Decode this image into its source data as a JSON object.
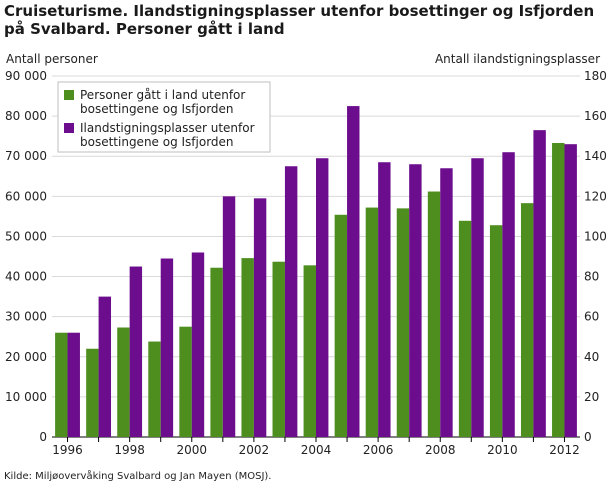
{
  "title_line1": "Cruiseturisme. Ilandstigningsplasser utenfor bosettinger og Isfjorden",
  "title_line2": "på Svalbard. Personer gått i land",
  "left_axis_title": "Antall personer",
  "right_axis_title": "Antall ilandstigningsplasser",
  "source": "Kilde: Miljøovervåking Svalbard og Jan Mayen (MOSJ).",
  "colors": {
    "series1": "#4d8e1f",
    "series2": "#6b0d8c",
    "grid": "#d9d9d9"
  },
  "chart_data": {
    "type": "bar",
    "categories": [
      "1996",
      "1997",
      "1998",
      "1999",
      "2000",
      "2001",
      "2002",
      "2003",
      "2004",
      "2005",
      "2006",
      "2007",
      "2008",
      "2009",
      "2010",
      "2011",
      "2012"
    ],
    "x_tick_labels": [
      "1996",
      "",
      "1998",
      "",
      "2000",
      "",
      "2002",
      "",
      "2004",
      "",
      "2006",
      "",
      "2008",
      "",
      "2010",
      "",
      "2012"
    ],
    "series": [
      {
        "name": "Personer gått i land utenfor bosettingene og Isfjorden",
        "legend_lines": [
          "Personer gått i land utenfor",
          "bosettingene og Isfjorden"
        ],
        "axis": "left",
        "color": "#4d8e1f",
        "values": [
          26000,
          22000,
          27300,
          23800,
          27500,
          42200,
          44600,
          43700,
          42800,
          55400,
          57200,
          57000,
          61200,
          53900,
          52800,
          58300,
          73300
        ]
      },
      {
        "name": "Ilandstigningsplasser utenfor bosettingene og Isfjorden",
        "legend_lines": [
          "Ilandstigningsplasser utenfor",
          "bosettingene og Isfjorden"
        ],
        "axis": "right",
        "color": "#6b0d8c",
        "values": [
          52,
          70,
          85,
          89,
          92,
          120,
          119,
          135,
          139,
          165,
          137,
          136,
          134,
          139,
          142,
          153,
          146
        ]
      }
    ],
    "ylim_left": [
      0,
      90000
    ],
    "ylim_right": [
      0,
      180
    ],
    "yticks_left": [
      "0",
      "10 000",
      "20 000",
      "30 000",
      "40 000",
      "50 000",
      "60 000",
      "70 000",
      "80 000",
      "90 000"
    ],
    "yticks_right": [
      "0",
      "20",
      "40",
      "60",
      "80",
      "100",
      "120",
      "140",
      "160",
      "180"
    ],
    "grid": true,
    "legend_position": "top-left"
  }
}
